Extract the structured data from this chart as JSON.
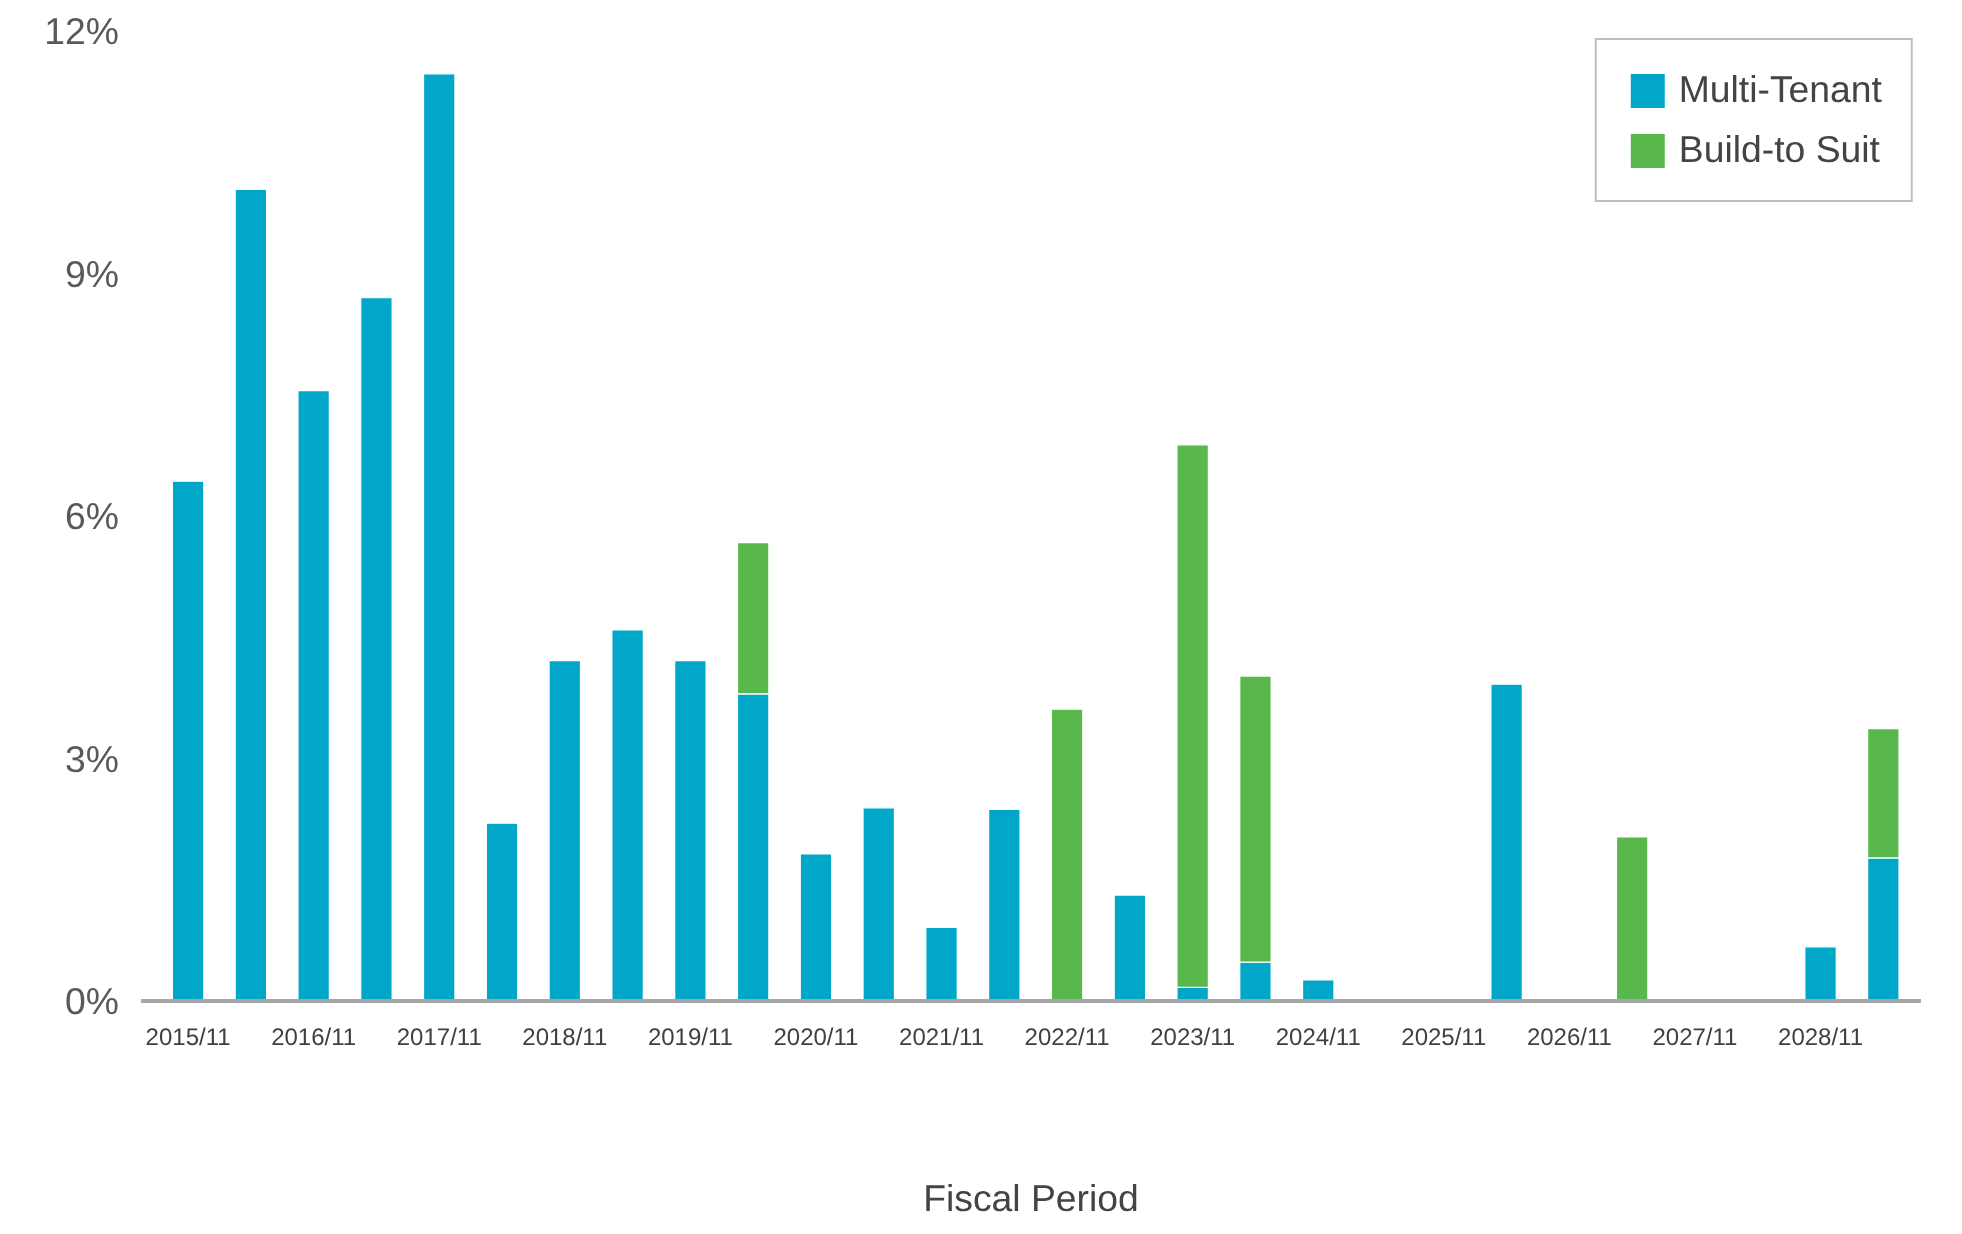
{
  "chart_data": {
    "type": "bar",
    "stacked": true,
    "xlabel": "Fiscal Period",
    "categories": [
      "2015/11",
      null,
      "2016/11",
      null,
      "2017/11",
      null,
      "2018/11",
      null,
      "2019/11",
      null,
      "2020/11",
      null,
      "2021/11",
      null,
      "2022/11",
      null,
      "2023/11",
      null,
      "2024/11",
      null,
      "2025/11",
      null,
      "2026/11",
      null,
      "2027/11",
      null,
      "2028/11",
      null
    ],
    "series": [
      {
        "name": "Multi-Tenant",
        "color": "#00a7c9",
        "values": [
          6.43,
          10.04,
          7.55,
          8.7,
          11.47,
          2.2,
          4.21,
          4.59,
          4.21,
          3.8,
          1.82,
          2.39,
          0.91,
          2.37,
          null,
          1.31,
          0.17,
          0.48,
          0.26,
          null,
          null,
          3.92,
          null,
          null,
          null,
          null,
          0.67,
          1.77
        ]
      },
      {
        "name": "Build-to Suit",
        "color": "#58b84b",
        "values": [
          null,
          null,
          null,
          null,
          null,
          null,
          null,
          null,
          null,
          1.87,
          null,
          null,
          null,
          null,
          3.61,
          null,
          6.71,
          3.54,
          null,
          null,
          null,
          null,
          null,
          2.03,
          null,
          null,
          null,
          1.6
        ]
      }
    ],
    "ylim": [
      0,
      12
    ],
    "yticks": [
      {
        "value": 0,
        "label": "0%"
      },
      {
        "value": 3,
        "label": "3%"
      },
      {
        "value": 6,
        "label": "6%"
      },
      {
        "value": 9,
        "label": "9%"
      },
      {
        "value": 12,
        "label": "12%"
      }
    ],
    "grid": false,
    "legend": "top right"
  }
}
